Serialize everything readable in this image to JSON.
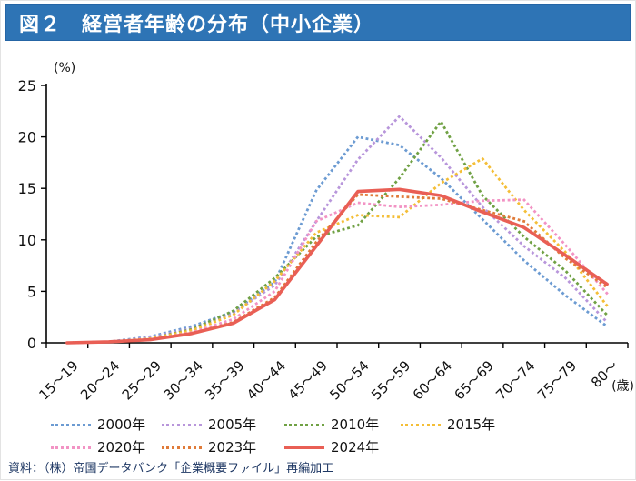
{
  "header": {
    "title": "図２　経営者年齢の分布（中小企業）",
    "bg_color": "#2E74B5",
    "text_color": "#FFFFFF"
  },
  "chart_data": {
    "type": "line",
    "title": "経営者年齢の分布（中小企業）",
    "xlabel": "(歳)",
    "ylabel": "(%)",
    "ylim": [
      0,
      25
    ],
    "yticks": [
      0,
      5,
      10,
      15,
      20,
      25
    ],
    "grid": false,
    "legend_position": "bottom",
    "categories": [
      "15～19",
      "20～24",
      "25～29",
      "30～34",
      "35～39",
      "40～44",
      "45～49",
      "50～54",
      "55～59",
      "60～64",
      "65～69",
      "70～74",
      "75～79",
      "80～"
    ],
    "series": [
      {
        "name": "2000年",
        "color": "#6C9BD2",
        "style": "dotted",
        "values": [
          0.0,
          0.1,
          0.6,
          1.6,
          3.0,
          5.9,
          14.8,
          20.0,
          19.2,
          16.0,
          12.0,
          8.0,
          4.6,
          1.6
        ]
      },
      {
        "name": "2005年",
        "color": "#B896DB",
        "style": "dotted",
        "values": [
          0.0,
          0.1,
          0.5,
          1.4,
          2.9,
          5.6,
          11.8,
          17.8,
          22.0,
          18.0,
          13.2,
          9.4,
          6.3,
          2.0
        ]
      },
      {
        "name": "2010年",
        "color": "#70A144",
        "style": "dotted",
        "values": [
          0.0,
          0.1,
          0.4,
          1.3,
          3.1,
          6.3,
          10.3,
          11.4,
          16.0,
          21.5,
          14.3,
          10.3,
          7.0,
          2.7
        ]
      },
      {
        "name": "2015年",
        "color": "#F4BE37",
        "style": "dotted",
        "values": [
          0.0,
          0.1,
          0.4,
          1.2,
          2.7,
          6.0,
          10.7,
          12.4,
          12.2,
          15.5,
          17.9,
          12.9,
          8.8,
          3.6
        ]
      },
      {
        "name": "2020年",
        "color": "#F293C4",
        "style": "dotted",
        "values": [
          0.0,
          0.1,
          0.3,
          1.0,
          2.3,
          5.0,
          11.8,
          13.6,
          13.2,
          13.4,
          13.8,
          13.9,
          9.5,
          4.8
        ]
      },
      {
        "name": "2023年",
        "color": "#E07B39",
        "style": "dotted",
        "values": [
          0.0,
          0.1,
          0.3,
          0.9,
          2.0,
          4.4,
          9.8,
          14.4,
          14.2,
          14.0,
          12.9,
          11.8,
          8.2,
          5.4
        ]
      },
      {
        "name": "2024年",
        "color": "#E95F55",
        "style": "solid",
        "values": [
          0.0,
          0.1,
          0.3,
          0.9,
          1.9,
          4.2,
          9.4,
          14.7,
          14.9,
          14.3,
          12.7,
          11.2,
          8.5,
          5.7
        ]
      }
    ],
    "legend_rows": [
      [
        0,
        1,
        2,
        3
      ],
      [
        4,
        5,
        6
      ]
    ]
  },
  "source": {
    "label": "資料：（株）帝国データバンク「企業概要ファイル」再編加工"
  }
}
